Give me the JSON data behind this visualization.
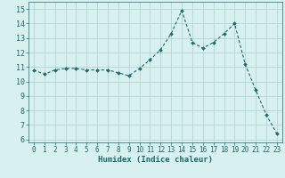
{
  "x": [
    0,
    1,
    2,
    3,
    4,
    5,
    6,
    7,
    8,
    9,
    10,
    11,
    12,
    13,
    14,
    15,
    16,
    17,
    18,
    19,
    20,
    21,
    22,
    23
  ],
  "y": [
    10.8,
    10.5,
    10.8,
    10.9,
    10.9,
    10.8,
    10.8,
    10.8,
    10.6,
    10.4,
    10.9,
    11.5,
    12.2,
    13.3,
    14.9,
    12.7,
    12.3,
    12.7,
    13.3,
    14.0,
    11.2,
    9.4,
    7.7,
    6.4
  ],
  "line_color": "#1a6b6b",
  "marker": "D",
  "marker_size": 2.0,
  "bg_color": "#d9f0f0",
  "grid_color": "#aacfcf",
  "xlabel": "Humidex (Indice chaleur)",
  "xlabel_fontsize": 6.5,
  "tick_fontsize": 5.5,
  "ylim": [
    5.8,
    15.5
  ],
  "yticks": [
    6,
    7,
    8,
    9,
    10,
    11,
    12,
    13,
    14,
    15
  ],
  "xlim": [
    -0.5,
    23.5
  ],
  "xticks": [
    0,
    1,
    2,
    3,
    4,
    5,
    6,
    7,
    8,
    9,
    10,
    11,
    12,
    13,
    14,
    15,
    16,
    17,
    18,
    19,
    20,
    21,
    22,
    23
  ]
}
